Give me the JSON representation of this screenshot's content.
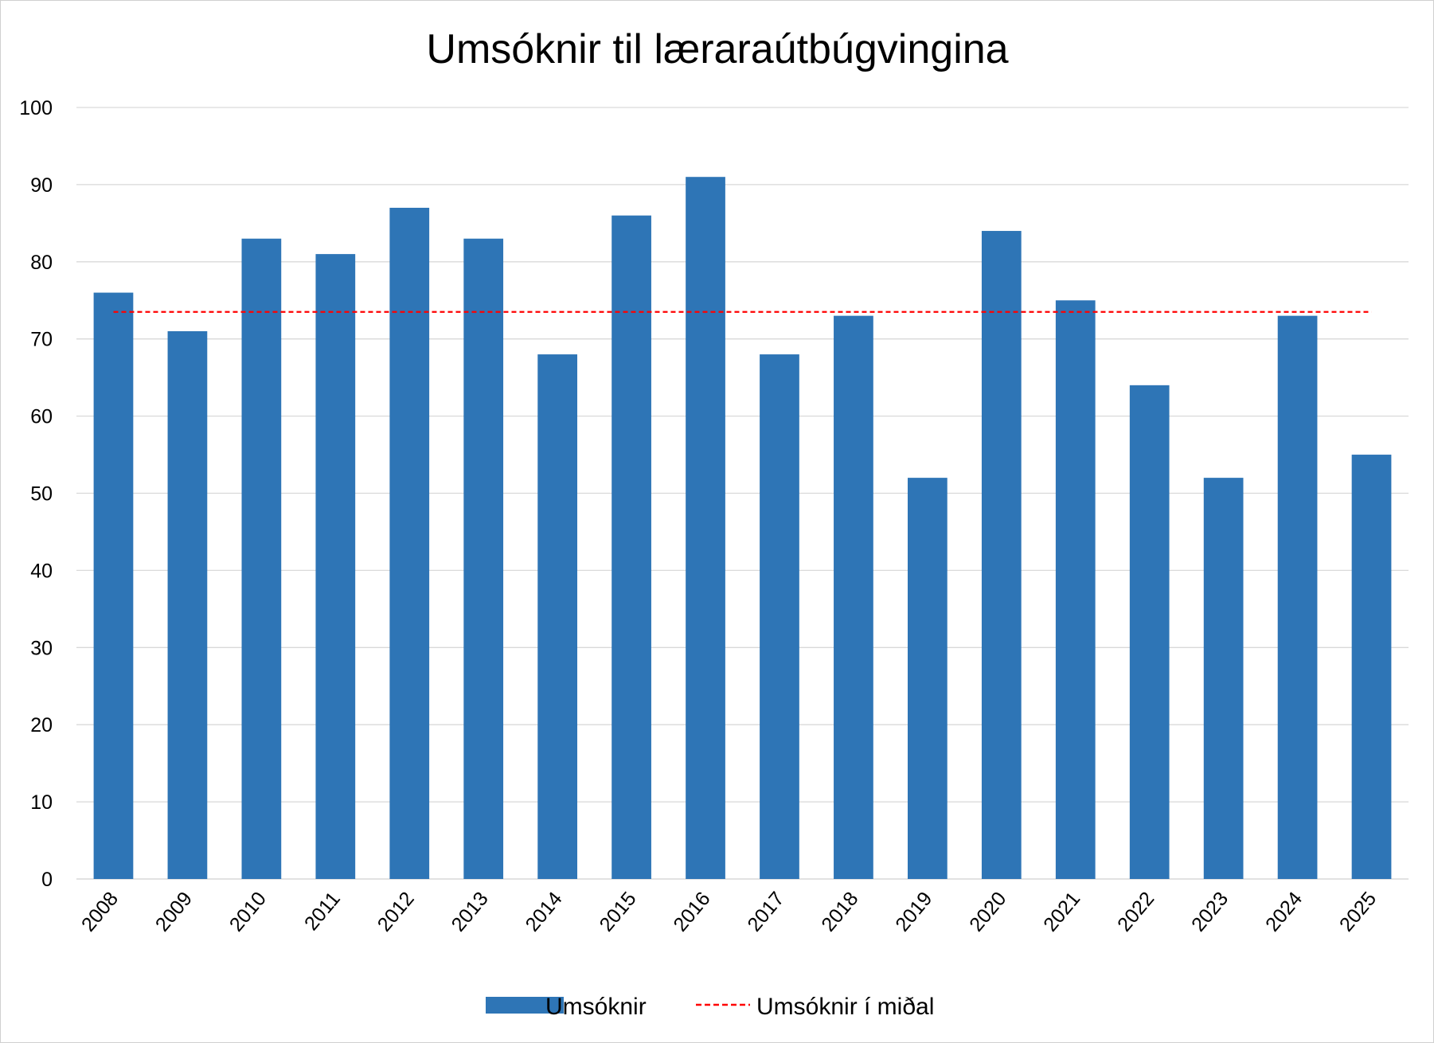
{
  "chart_data": {
    "type": "bar",
    "title": "Umsóknir til læraraútbúgvingina",
    "xlabel": "",
    "ylabel": "",
    "categories": [
      "2008",
      "2009",
      "2010",
      "2011",
      "2012",
      "2013",
      "2014",
      "2015",
      "2016",
      "2017",
      "2018",
      "2019",
      "2020",
      "2021",
      "2022",
      "2023",
      "2024",
      "2025"
    ],
    "series": [
      {
        "name": "Umsóknir",
        "type": "bar",
        "color": "#2E75B6",
        "values": [
          76,
          71,
          83,
          81,
          87,
          83,
          68,
          86,
          91,
          68,
          73,
          52,
          84,
          75,
          64,
          52,
          73,
          55
        ]
      },
      {
        "name": "Umsóknir í miðal",
        "type": "line",
        "style": "dashed",
        "color": "#FF0000",
        "values": [
          73.5,
          73.5,
          73.5,
          73.5,
          73.5,
          73.5,
          73.5,
          73.5,
          73.5,
          73.5,
          73.5,
          73.5,
          73.5,
          73.5,
          73.5,
          73.5,
          73.5,
          73.5
        ]
      }
    ],
    "ylim": [
      0,
      100
    ],
    "yticks": [
      0,
      10,
      20,
      30,
      40,
      50,
      60,
      70,
      80,
      90,
      100
    ],
    "grid": true,
    "legend_position": "bottom"
  }
}
